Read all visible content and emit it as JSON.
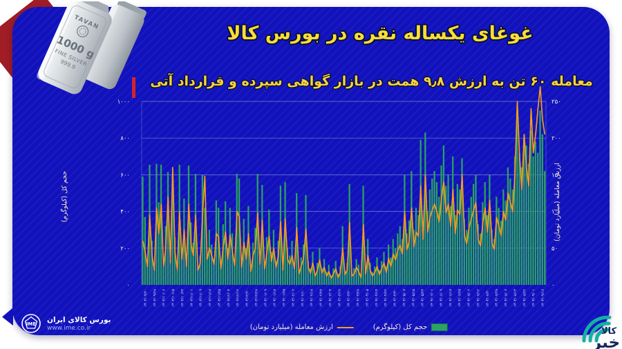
{
  "header": {
    "title": "غوغای یکساله نقره در بورس کالا",
    "subtitle": "معامله ۶۰ تن به ارزش ۹٫۸ همت در بازار گواهی سپرده و قرارداد آتی"
  },
  "silver_image": {
    "brand": "TAVAN",
    "weight": "1000 g",
    "line1": "FINE SILVER",
    "line2": "999.9"
  },
  "footer": {
    "org_name": "بورس کالای ایران",
    "org_url": "www.ime.co.ir",
    "logo_text": "IME"
  },
  "watermark": {
    "word_top": "کالا",
    "word_bottom": "خبر"
  },
  "colors": {
    "card_blue": "#1212bd",
    "bar_green": "#2aa35e",
    "line_orange": "#f49d1d",
    "title_yellow": "#ffde33",
    "grid": "#8b93dd",
    "accent_red": "#d42427",
    "corner_red": "#a01d26",
    "teal": "#14b0a4"
  },
  "chart_data": {
    "type": "bar+line",
    "grid": true,
    "legend_position": "bottom",
    "left_axis": {
      "label": "حجم کل (کیلوگرم)",
      "range": [
        0,
        1000
      ],
      "tick_values": [
        0,
        200,
        400,
        600,
        800,
        1000
      ],
      "tick_labels": [
        "۰",
        "۲۰۰",
        "۴۰۰",
        "۶۰۰",
        "۸۰۰",
        "۱۰۰۰"
      ]
    },
    "right_axis": {
      "label": "ارزش معامله (میلیارد تومان)",
      "range": [
        0,
        250
      ],
      "tick_values": [
        0,
        50,
        100,
        150,
        200,
        250
      ],
      "tick_labels": [
        "۰",
        "۵۰",
        "۱۰۰",
        "۱۵۰",
        "۲۰۰",
        "۲۵۰"
      ]
    },
    "x_tick_labels": [
      "۱۴۰۳/۰۹/۲۰",
      "۱۴۰۳/۰۹/۲۸",
      "۱۴۰۳/۱۰/۰۶",
      "۱۴۰۳/۱۰/۱۵",
      "۱۴۰۳/۱۰/۲۳",
      "۱۴۰۳/۱۱/۰۱",
      "۱۴۰۳/۱۱/۰۹",
      "۱۴۰۳/۱۱/۱۷",
      "۱۴۰۳/۱۱/۲۵",
      "۱۴۰۳/۱۲/۰۴",
      "۱۴۰۳/۱۲/۱۲",
      "۱۴۰۳/۱۲/۲۰",
      "۱۴۰۳/۱۲/۲۸",
      "۱۴۰۴/۰۱/۰۹",
      "۱۴۰۴/۰۱/۱۷",
      "۱۴۰۴/۰۱/۲۵",
      "۱۴۰۴/۰۲/۰۲",
      "۱۴۰۴/۰۲/۱۰",
      "۱۴۰۴/۰۲/۱۸",
      "۱۴۰۴/۰۲/۲۷",
      "۱۴۰۴/۰۳/۰۴",
      "۱۴۰۴/۰۳/۱۲",
      "۱۴۰۴/۰۳/۲۰",
      "۱۴۰۴/۰۳/۲۸",
      "۱۴۰۴/۰۴/۰۵",
      "۱۴۰۴/۰۴/۱۴",
      "۱۴۰۴/۰۴/۲۲",
      "۱۴۰۴/۰۴/۳۰",
      "۱۴۰۴/۰۵/۰۷",
      "۱۴۰۴/۰۵/۱۵",
      "۱۴۰۴/۰۵/۲۳",
      "۱۴۰۴/۰۶/۰۱",
      "۱۴۰۴/۰۶/۰۹",
      "۱۴۰۴/۰۶/۱۷",
      "۱۴۰۴/۰۶/۲۵",
      "۱۴۰۴/۰۷/۰۲",
      "۱۴۰۴/۰۷/۱۲",
      "۱۴۰۴/۰۷/۲۰",
      "۱۴۰۴/۰۷/۲۸",
      "۱۴۰۴/۰۸/۰۶",
      "۱۴۰۴/۰۸/۱۴",
      "۱۴۰۴/۰۸/۲۲",
      "۱۴۰۴/۰۹/۰۱",
      "۱۴۰۴/۰۹/۱۶"
    ],
    "series": [
      {
        "name": "حجم کل (کیلوگرم)",
        "type": "bar",
        "axis": "left",
        "color": "#2aa35e",
        "values": [
          590,
          370,
          120,
          655,
          240,
          90,
          660,
          450,
          655,
          100,
          320,
          615,
          140,
          600,
          260,
          80,
          655,
          200,
          470,
          120,
          650,
          340,
          230,
          605,
          90,
          160,
          600,
          420,
          160,
          300,
          220,
          140,
          460,
          420,
          100,
          330,
          455,
          200,
          420,
          280,
          140,
          605,
          580,
          120,
          360,
          200,
          430,
          90,
          230,
          310,
          605,
          150,
          545,
          120,
          260,
          410,
          180,
          300,
          130,
          240,
          540,
          100,
          560,
          200,
          160,
          240,
          120,
          500,
          80,
          150,
          220,
          490,
          130,
          90,
          180,
          60,
          120,
          200,
          90,
          140,
          70,
          110,
          50,
          90,
          130,
          60,
          100,
          320,
          80,
          120,
          550,
          70,
          90,
          140,
          110,
          60,
          540,
          90,
          250,
          120,
          70,
          100,
          150,
          80,
          130,
          180,
          100,
          220,
          150,
          250,
          200,
          280,
          320,
          250,
          600,
          280,
          350,
          620,
          300,
          420,
          380,
          790,
          350,
          830,
          400,
          520,
          580,
          620,
          560,
          480,
          650,
          760,
          540,
          600,
          430,
          700,
          380,
          550,
          520,
          690,
          360,
          300,
          420,
          480,
          550,
          600,
          330,
          280,
          450,
          560,
          380,
          600,
          300,
          250,
          480,
          420,
          350,
          520,
          460,
          640,
          580,
          520,
          700,
          950,
          720,
          640,
          800,
          760,
          660,
          840,
          700,
          780,
          720,
          950,
          820,
          620
        ]
      },
      {
        "name": "ارزش معامله (میلیارد تومان)",
        "type": "line",
        "axis": "right",
        "color": "#f49d1d",
        "values": [
          60,
          45,
          25,
          95,
          40,
          20,
          105,
          70,
          110,
          25,
          50,
          120,
          30,
          160,
          45,
          20,
          100,
          35,
          75,
          25,
          110,
          55,
          40,
          95,
          20,
          30,
          95,
          148,
          35,
          50,
          40,
          28,
          70,
          65,
          22,
          52,
          72,
          35,
          68,
          45,
          26,
          100,
          92,
          24,
          58,
          35,
          70,
          18,
          40,
          50,
          98,
          28,
          88,
          22,
          44,
          66,
          32,
          50,
          24,
          40,
          86,
          20,
          90,
          35,
          28,
          40,
          22,
          78,
          15,
          26,
          36,
          76,
          24,
          16,
          30,
          12,
          20,
          34,
          16,
          24,
          12,
          18,
          9,
          15,
          22,
          10,
          17,
          50,
          14,
          20,
          85,
          12,
          15,
          24,
          18,
          10,
          82,
          15,
          40,
          20,
          12,
          17,
          25,
          14,
          22,
          30,
          17,
          36,
          25,
          42,
          34,
          47,
          54,
          42,
          100,
          48,
          60,
          105,
          52,
          72,
          66,
          135,
          62,
          150,
          72,
          92,
          102,
          110,
          100,
          86,
          118,
          140,
          98,
          110,
          80,
          130,
          70,
          102,
          96,
          150,
          68,
          56,
          78,
          90,
          102,
          112,
          62,
          53,
          84,
          105,
          72,
          115,
          57,
          48,
          92,
          80,
          67,
          100,
          88,
          125,
          112,
          100,
          150,
          250,
          175,
          130,
          205,
          160,
          135,
          240,
          180,
          205,
          240,
          270,
          225,
          205
        ]
      }
    ],
    "legend": [
      {
        "label": "حجم کل (کیلوگرم)",
        "swatch": "bar"
      },
      {
        "label": "ارزش معامله (میلیارد تومان)",
        "swatch": "line"
      }
    ]
  }
}
